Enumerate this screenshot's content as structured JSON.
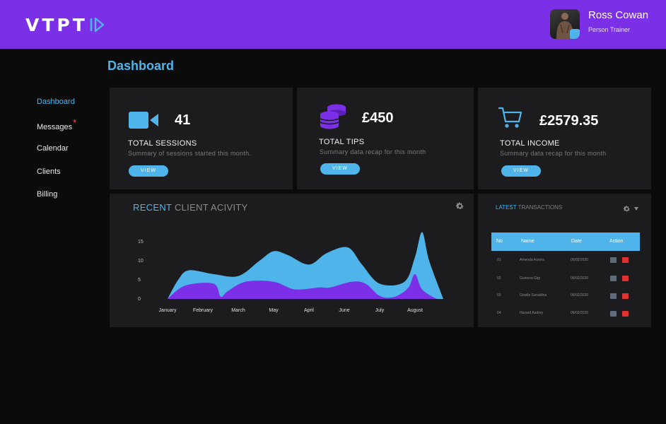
{
  "header": {
    "logo_text": "VTPT",
    "user_name": "Ross Cowan",
    "user_role": "Person Trainer"
  },
  "page_title": "Dashboard",
  "sidebar": {
    "items": [
      {
        "label": "Dashboard",
        "active": true
      },
      {
        "label": "Messages",
        "badge": "*"
      },
      {
        "label": "Calendar"
      },
      {
        "label": "Clients"
      },
      {
        "label": "Billing"
      }
    ]
  },
  "stats": [
    {
      "icon": "video-camera-icon",
      "value": "41",
      "title": "TOTAL SESSIONS",
      "subtitle": "Summary of sessions started this month.",
      "button": "VIEW"
    },
    {
      "icon": "coins-icon",
      "value": "£450",
      "title": "TOTAL TIPS",
      "subtitle": "Summary data recap for this month",
      "button": "VIEW"
    },
    {
      "icon": "shopping-cart-icon",
      "value": "£2579.35",
      "title": "TOTAL INCOME",
      "subtitle": "Summary data recap for this month",
      "button": "VIEW"
    }
  ],
  "activity": {
    "title_highlight": "RECENT",
    "title_rest": "CLIENT ACIVITY"
  },
  "chart_data": {
    "type": "area",
    "categories": [
      "January",
      "February",
      "March",
      "May",
      "April",
      "June",
      "July",
      "August"
    ],
    "yticks": [
      0,
      5,
      10,
      15
    ],
    "ylim": [
      0,
      17
    ],
    "series": [
      {
        "color": "#4fb4ea",
        "points": [
          [
            0,
            0
          ],
          [
            0.3,
            5
          ],
          [
            0.6,
            7.5
          ],
          [
            1.3,
            6.5
          ],
          [
            2.0,
            6.0
          ],
          [
            2.6,
            10
          ],
          [
            3.0,
            12.5
          ],
          [
            3.4,
            11.5
          ],
          [
            4.0,
            9
          ],
          [
            4.5,
            12
          ],
          [
            5.1,
            13.5
          ],
          [
            5.5,
            9
          ],
          [
            6.0,
            4.0
          ],
          [
            6.7,
            4.5
          ],
          [
            7.0,
            11
          ],
          [
            7.2,
            17.5
          ],
          [
            7.4,
            10
          ],
          [
            7.8,
            0
          ]
        ]
      },
      {
        "color": "#7b2fe6",
        "points": [
          [
            0,
            0
          ],
          [
            0.5,
            3.5
          ],
          [
            1.3,
            4.0
          ],
          [
            1.5,
            0.6
          ],
          [
            1.7,
            2.0
          ],
          [
            2.2,
            4.5
          ],
          [
            3.0,
            4.5
          ],
          [
            3.6,
            2.5
          ],
          [
            4.3,
            3.0
          ],
          [
            4.6,
            3.0
          ],
          [
            5.2,
            4.5
          ],
          [
            5.6,
            4.0
          ],
          [
            6.0,
            0.8
          ],
          [
            6.4,
            0.5
          ],
          [
            6.8,
            2.8
          ],
          [
            7.0,
            6.5
          ],
          [
            7.2,
            2.5
          ],
          [
            7.6,
            0
          ]
        ]
      }
    ]
  },
  "transactions": {
    "title_highlight": "LATEST",
    "title_rest": "TRANSACTIONS",
    "columns": [
      "No",
      "Name",
      "Date",
      "Action"
    ],
    "rows": [
      {
        "no": "01",
        "name": "Amenda Aurora",
        "date": "06/02/2020"
      },
      {
        "no": "02",
        "name": "Guineva Gigi",
        "date": "06/02/2020"
      },
      {
        "no": "03",
        "name": "Giselle Geraldine",
        "date": "06/02/2020"
      },
      {
        "no": "04",
        "name": "Hazard Audrey",
        "date": "06/02/2020"
      }
    ]
  },
  "colors": {
    "accent": "#4fb4ea",
    "brand": "#7b2fe6",
    "danger": "#e03232"
  }
}
